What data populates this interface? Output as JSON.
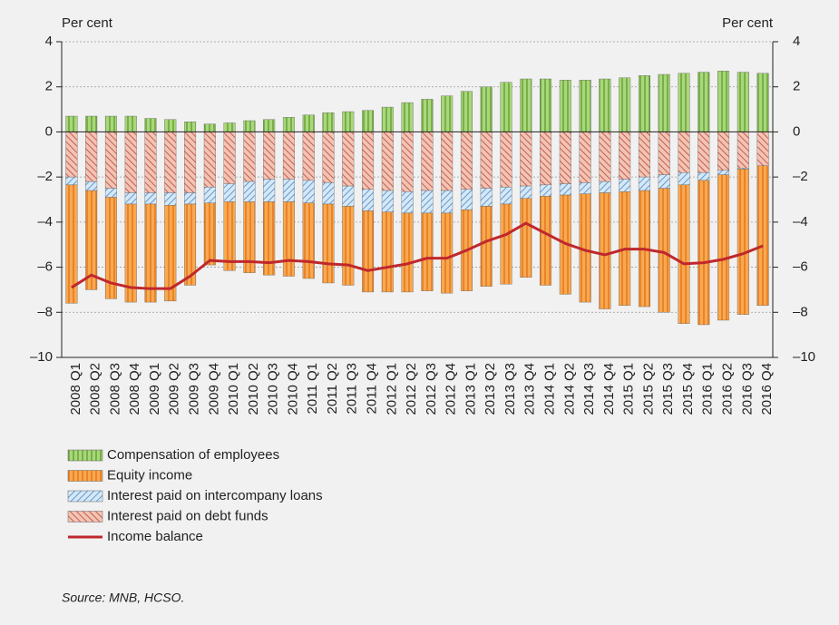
{
  "chart_data": {
    "type": "bar",
    "categories": [
      "2008 Q1",
      "2008 Q2",
      "2008 Q3",
      "2008 Q4",
      "2009 Q1",
      "2009 Q2",
      "2009 Q3",
      "2009 Q4",
      "2010 Q1",
      "2010 Q2",
      "2010 Q3",
      "2010 Q4",
      "2011 Q1",
      "2011 Q2",
      "2011 Q3",
      "2011 Q4",
      "2012 Q1",
      "2012 Q2",
      "2012 Q3",
      "2012 Q4",
      "2013 Q1",
      "2013 Q2",
      "2013 Q3",
      "2013 Q4",
      "2014 Q1",
      "2014 Q2",
      "2014 Q3",
      "2014 Q4",
      "2015 Q1",
      "2015 Q2",
      "2015 Q3",
      "2015 Q4",
      "2016 Q1",
      "2016 Q2",
      "2016 Q3",
      "2016 Q4"
    ],
    "series": [
      {
        "name": "Compensation of employees",
        "color": "#a9d77a",
        "values": [
          0.7,
          0.7,
          0.7,
          0.7,
          0.6,
          0.55,
          0.45,
          0.35,
          0.4,
          0.5,
          0.55,
          0.65,
          0.75,
          0.85,
          0.9,
          0.95,
          1.1,
          1.3,
          1.45,
          1.6,
          1.8,
          2.0,
          2.2,
          2.35,
          2.35,
          2.3,
          2.3,
          2.35,
          2.4,
          2.5,
          2.55,
          2.6,
          2.65,
          2.7,
          2.65,
          2.6
        ]
      },
      {
        "name": "Equity income",
        "color": "#f9a84e",
        "values": [
          -5.25,
          -4.4,
          -4.5,
          -4.35,
          -4.35,
          -4.25,
          -3.6,
          -2.75,
          -3.05,
          -3.15,
          -3.25,
          -3.3,
          -3.35,
          -3.5,
          -3.5,
          -3.6,
          -3.55,
          -3.5,
          -3.45,
          -3.55,
          -3.6,
          -3.55,
          -3.55,
          -3.5,
          -3.95,
          -4.4,
          -4.8,
          -5.15,
          -5.05,
          -5.15,
          -5.5,
          -6.15,
          -6.4,
          -6.45,
          -6.45,
          -6.2
        ]
      },
      {
        "name": "Interest paid on intercompany loans",
        "color": "#d4e8f7",
        "values": [
          -0.35,
          -0.4,
          -0.4,
          -0.5,
          -0.5,
          -0.55,
          -0.5,
          -0.7,
          -0.8,
          -0.9,
          -1.0,
          -1.0,
          -1.0,
          -0.95,
          -0.9,
          -0.95,
          -0.95,
          -0.95,
          -1.0,
          -1.0,
          -0.9,
          -0.8,
          -0.75,
          -0.55,
          -0.5,
          -0.5,
          -0.5,
          -0.5,
          -0.55,
          -0.6,
          -0.6,
          -0.55,
          -0.35,
          -0.2,
          -0.05,
          0
        ]
      },
      {
        "name": "Interest paid on debt funds",
        "color": "#f2c4b2",
        "values": [
          -2.0,
          -2.2,
          -2.5,
          -2.7,
          -2.7,
          -2.7,
          -2.7,
          -2.45,
          -2.3,
          -2.2,
          -2.1,
          -2.1,
          -2.15,
          -2.25,
          -2.4,
          -2.55,
          -2.6,
          -2.65,
          -2.6,
          -2.6,
          -2.55,
          -2.5,
          -2.45,
          -2.4,
          -2.35,
          -2.3,
          -2.25,
          -2.2,
          -2.1,
          -2.0,
          -1.9,
          -1.8,
          -1.8,
          -1.7,
          -1.6,
          -1.5
        ]
      },
      {
        "name": "Income balance",
        "color": "#c0272d",
        "type": "line",
        "values": [
          -6.9,
          -6.35,
          -6.7,
          -6.9,
          -6.95,
          -6.95,
          -6.4,
          -5.7,
          -5.75,
          -5.75,
          -5.8,
          -5.7,
          -5.75,
          -5.85,
          -5.9,
          -6.15,
          -6.0,
          -5.85,
          -5.6,
          -5.6,
          -5.25,
          -4.85,
          -4.55,
          -4.05,
          -4.5,
          -4.95,
          -5.25,
          -5.45,
          -5.2,
          -5.2,
          -5.35,
          -5.85,
          -5.8,
          -5.65,
          -5.4,
          -5.05
        ]
      }
    ],
    "y_label": "Per cent",
    "y2_label": "Per cent",
    "ylim": [
      -10,
      4
    ],
    "yticks": [
      {
        "value": -10,
        "label": "–10"
      },
      {
        "value": -8,
        "label": "–8"
      },
      {
        "value": -6,
        "label": "–6"
      },
      {
        "value": -4,
        "label": "–4"
      },
      {
        "value": -2,
        "label": "–2"
      },
      0,
      2,
      4
    ],
    "y2lim": [
      -10,
      4
    ],
    "y2ticks": [
      {
        "value": -10,
        "label": "–10"
      },
      {
        "value": -8,
        "label": "–8"
      },
      {
        "value": -6,
        "label": "–6"
      },
      {
        "value": -4,
        "label": "–4"
      },
      {
        "value": -2,
        "label": "–2"
      },
      0,
      2,
      4
    ],
    "grid": true,
    "stacked": true,
    "source": "Source: MNB, HCSO."
  }
}
